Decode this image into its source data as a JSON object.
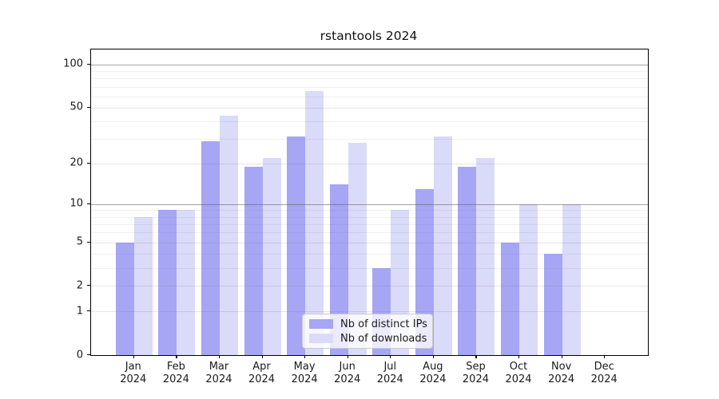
{
  "title": "rstantools 2024",
  "colors": {
    "distinct_ips": "#a6a6f5",
    "downloads": "#dadaf9",
    "grid_major": "rgba(90,90,90,0.55)",
    "grid_medium": "rgba(110,110,110,0.18)",
    "grid_minor": "rgba(120,120,120,0.10)",
    "axis": "#000000"
  },
  "legend": {
    "items": [
      {
        "label": "Nb of distinct IPs",
        "color_key": "distinct_ips"
      },
      {
        "label": "Nb of downloads",
        "color_key": "downloads"
      }
    ]
  },
  "y_axis": {
    "tick_values": [
      100,
      50,
      20,
      10,
      5,
      2,
      1,
      0
    ],
    "tick_labels": [
      "100",
      "50",
      "20",
      "10",
      "5",
      "2",
      "1",
      "0"
    ]
  },
  "chart_data": {
    "type": "bar",
    "title": "rstantools 2024",
    "categories": [
      "Jan 2024",
      "Feb 2024",
      "Mar 2024",
      "Apr 2024",
      "May 2024",
      "Jun 2024",
      "Jul 2024",
      "Aug 2024",
      "Sep 2024",
      "Oct 2024",
      "Nov 2024",
      "Dec 2024"
    ],
    "series": [
      {
        "name": "Nb of distinct IPs",
        "values": [
          5,
          9,
          29,
          19,
          31,
          14,
          3,
          13,
          19,
          5,
          4,
          0
        ]
      },
      {
        "name": "Nb of downloads",
        "values": [
          8,
          9,
          44,
          22,
          65,
          28,
          9,
          31,
          22,
          10,
          10,
          0
        ]
      }
    ],
    "xlabel": "",
    "ylabel": "",
    "yscale": "log1p",
    "ylim": [
      0,
      127
    ],
    "yticks": [
      0,
      1,
      2,
      5,
      10,
      20,
      50,
      100
    ],
    "grid": "horizontal",
    "gridlines": {
      "major": [
        10,
        100
      ],
      "medium": [
        1,
        2,
        5,
        20,
        50
      ],
      "minor": [
        3,
        4,
        6,
        7,
        8,
        9,
        30,
        40,
        60,
        70,
        80,
        90
      ]
    },
    "legend_position": "lower center"
  }
}
